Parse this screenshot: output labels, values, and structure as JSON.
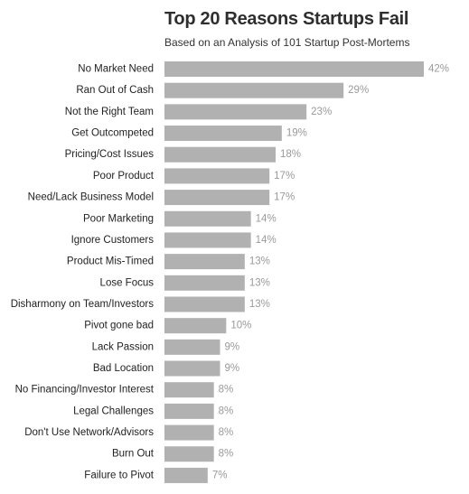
{
  "chart_data": {
    "type": "bar",
    "orientation": "horizontal",
    "title": "Top 20 Reasons Startups Fail",
    "subtitle": "Based on an Analysis of 101 Startup Post-Mortems",
    "categories": [
      "No Market Need",
      "Ran Out of Cash",
      "Not the Right Team",
      "Get Outcompeted",
      "Pricing/Cost Issues",
      "Poor Product",
      "Need/Lack Business Model",
      "Poor Marketing",
      "Ignore Customers",
      "Product Mis-Timed",
      "Lose Focus",
      "Disharmony on Team/Investors",
      "Pivot gone bad",
      "Lack Passion",
      "Bad Location",
      "No Financing/Investor Interest",
      "Legal Challenges",
      "Don't Use Network/Advisors",
      "Burn Out",
      "Failure to Pivot"
    ],
    "values": [
      42,
      29,
      23,
      19,
      18,
      17,
      17,
      14,
      14,
      13,
      13,
      13,
      10,
      9,
      9,
      8,
      8,
      8,
      8,
      7
    ],
    "value_labels": [
      "42%",
      "29%",
      "23%",
      "19%",
      "18%",
      "17%",
      "17%",
      "14%",
      "14%",
      "13%",
      "13%",
      "13%",
      "10%",
      "9%",
      "9%",
      "8%",
      "8%",
      "8%",
      "8%",
      "7%"
    ],
    "xlim": [
      0,
      42
    ],
    "grid": false,
    "legend": "none",
    "bar_color": "#b1b1b1"
  }
}
